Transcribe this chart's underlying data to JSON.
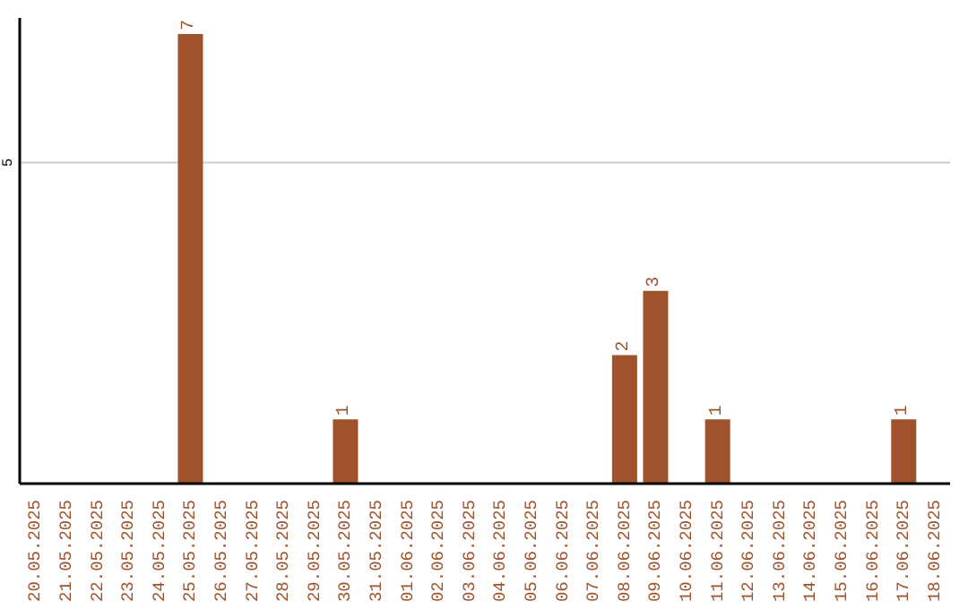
{
  "chart_data": {
    "type": "bar",
    "categories": [
      "20.05.2025",
      "21.05.2025",
      "22.05.2025",
      "23.05.2025",
      "24.05.2025",
      "25.05.2025",
      "26.05.2025",
      "27.05.2025",
      "28.05.2025",
      "29.05.2025",
      "30.05.2025",
      "31.05.2025",
      "01.06.2025",
      "02.06.2025",
      "03.06.2025",
      "04.06.2025",
      "05.06.2025",
      "06.06.2025",
      "07.06.2025",
      "08.06.2025",
      "09.06.2025",
      "10.06.2025",
      "11.06.2025",
      "12.06.2025",
      "13.06.2025",
      "14.06.2025",
      "15.06.2025",
      "16.06.2025",
      "17.06.2025",
      "18.06.2025"
    ],
    "values": [
      0,
      0,
      0,
      0,
      0,
      7,
      0,
      0,
      0,
      0,
      1,
      0,
      0,
      0,
      0,
      0,
      0,
      0,
      0,
      2,
      3,
      0,
      1,
      0,
      0,
      0,
      0,
      0,
      1,
      0
    ],
    "value_labels": [
      null,
      null,
      null,
      null,
      null,
      "7",
      null,
      null,
      null,
      null,
      "1",
      null,
      null,
      null,
      null,
      null,
      null,
      null,
      null,
      "2",
      "3",
      null,
      "1",
      null,
      null,
      null,
      null,
      null,
      "1",
      null
    ],
    "color": "#a0522d",
    "ylim": [
      0,
      7.25
    ],
    "yticks": [
      5
    ],
    "grid": "y"
  }
}
